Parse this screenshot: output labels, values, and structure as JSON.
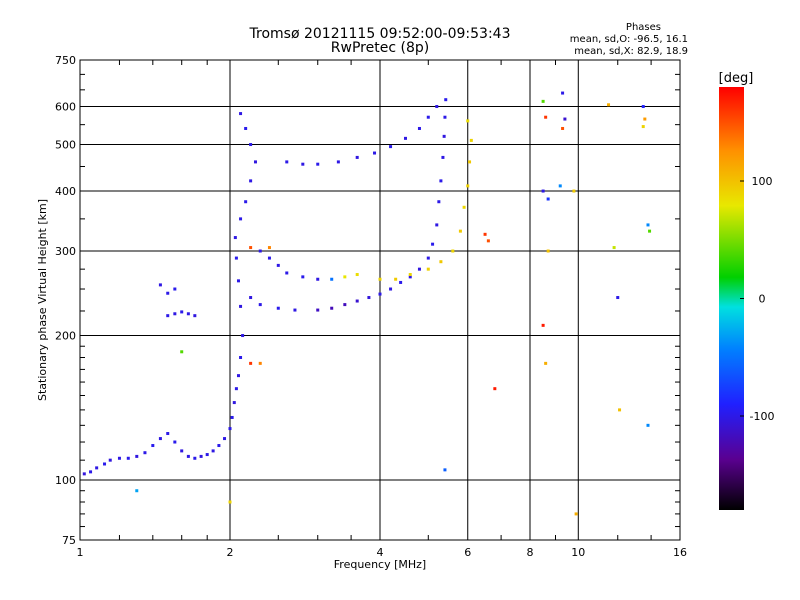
{
  "header": {
    "title_line1": "Tromsø 20121115 09:52:00-09:53:43",
    "title_line2": "RwPretec (8p)",
    "stats_title": "Phases",
    "stats_line1": "mean, sd,O: -96.5, 16.1",
    "stats_line2": "mean, sd,X:  82.9, 18.9"
  },
  "colorbar": {
    "label": "[deg]",
    "range": [
      -180,
      180
    ],
    "ticks": [
      {
        "value": 100,
        "label": "100"
      },
      {
        "value": 0,
        "label": "0"
      },
      {
        "value": -100,
        "label": "-100"
      }
    ]
  },
  "chart_data": {
    "type": "scatter",
    "xlabel": "Frequency [MHz]",
    "ylabel": "Stationary phase Virtual Height [km]",
    "xscale": "log",
    "yscale": "log",
    "xlim": [
      1,
      16
    ],
    "ylim": [
      75,
      750
    ],
    "grid": true,
    "xticks": [
      {
        "value": 1,
        "label": "1"
      },
      {
        "value": 2,
        "label": "2"
      },
      {
        "value": 4,
        "label": "4"
      },
      {
        "value": 6,
        "label": "6"
      },
      {
        "value": 8,
        "label": "8"
      },
      {
        "value": 10,
        "label": "10"
      },
      {
        "value": 16,
        "label": "16"
      }
    ],
    "yticks": [
      {
        "value": 75,
        "label": "75"
      },
      {
        "value": 100,
        "label": "100"
      },
      {
        "value": 200,
        "label": "200"
      },
      {
        "value": 300,
        "label": "300"
      },
      {
        "value": 400,
        "label": "400"
      },
      {
        "value": 500,
        "label": "500"
      },
      {
        "value": 600,
        "label": "600"
      },
      {
        "value": 750,
        "label": "750"
      }
    ],
    "series": [
      {
        "points": [
          [
            1.02,
            103,
            -105
          ],
          [
            1.05,
            104,
            -100
          ],
          [
            1.08,
            106,
            -102
          ],
          [
            1.12,
            108,
            -98
          ],
          [
            1.15,
            110,
            -104
          ],
          [
            1.2,
            111,
            -101
          ],
          [
            1.25,
            111,
            -99
          ],
          [
            1.3,
            112,
            -103
          ],
          [
            1.35,
            114,
            -100
          ],
          [
            1.4,
            118,
            -97
          ],
          [
            1.45,
            122,
            -102
          ],
          [
            1.5,
            125,
            -100
          ],
          [
            1.55,
            120,
            -98
          ],
          [
            1.6,
            115,
            -103
          ],
          [
            1.65,
            112,
            -101
          ],
          [
            1.7,
            111,
            -99
          ],
          [
            1.75,
            112,
            -104
          ],
          [
            1.8,
            113,
            -100
          ],
          [
            1.85,
            115,
            -102
          ],
          [
            1.9,
            118,
            -99
          ],
          [
            1.95,
            122,
            -101
          ],
          [
            2.0,
            128,
            -100
          ],
          [
            2.02,
            135,
            -98
          ],
          [
            2.04,
            145,
            -103
          ],
          [
            2.06,
            155,
            -100
          ],
          [
            2.08,
            165,
            -102
          ],
          [
            2.1,
            180,
            -99
          ],
          [
            2.12,
            200,
            -101
          ],
          [
            2.1,
            230,
            -103
          ],
          [
            2.08,
            260,
            -100
          ],
          [
            2.06,
            290,
            -98
          ],
          [
            2.05,
            320,
            -102
          ],
          [
            2.1,
            350,
            -100
          ],
          [
            2.15,
            380,
            -99
          ],
          [
            2.2,
            420,
            -101
          ],
          [
            2.25,
            460,
            -103
          ],
          [
            2.2,
            500,
            -100
          ],
          [
            2.15,
            540,
            -98
          ],
          [
            2.1,
            580,
            -102
          ],
          [
            2.3,
            300,
            -100
          ],
          [
            2.4,
            290,
            -99
          ],
          [
            2.5,
            280,
            -101
          ],
          [
            2.2,
            240,
            -103
          ],
          [
            2.3,
            232,
            -100
          ],
          [
            2.5,
            228,
            -98
          ],
          [
            2.7,
            226,
            -102
          ],
          [
            3.0,
            226,
            -115
          ],
          [
            3.2,
            228,
            -120
          ],
          [
            3.4,
            232,
            -118
          ],
          [
            3.6,
            236,
            -110
          ],
          [
            3.8,
            240,
            -105
          ],
          [
            4.0,
            244,
            -100
          ],
          [
            4.2,
            250,
            -102
          ],
          [
            4.4,
            258,
            -99
          ],
          [
            4.6,
            265,
            -101
          ],
          [
            4.8,
            275,
            -103
          ],
          [
            5.0,
            290,
            -100
          ],
          [
            5.1,
            310,
            -98
          ],
          [
            5.2,
            340,
            -102
          ],
          [
            5.25,
            380,
            -100
          ],
          [
            5.3,
            420,
            -99
          ],
          [
            5.35,
            470,
            -101
          ],
          [
            5.38,
            520,
            -103
          ],
          [
            5.4,
            570,
            -100
          ],
          [
            5.42,
            620,
            -98
          ],
          [
            2.6,
            460,
            -100
          ],
          [
            2.8,
            455,
            -102
          ],
          [
            3.0,
            455,
            -99
          ],
          [
            3.3,
            460,
            -101
          ],
          [
            3.6,
            470,
            -103
          ],
          [
            3.9,
            480,
            -100
          ],
          [
            4.2,
            495,
            -98
          ],
          [
            4.5,
            515,
            -102
          ],
          [
            4.8,
            540,
            -100
          ],
          [
            5.0,
            570,
            -99
          ],
          [
            5.2,
            600,
            -101
          ],
          [
            2.6,
            270,
            -100
          ],
          [
            2.8,
            265,
            -98
          ],
          [
            3.0,
            262,
            -102
          ],
          [
            3.2,
            262,
            -50
          ],
          [
            3.4,
            265,
            80
          ],
          [
            3.6,
            268,
            85
          ],
          [
            4.0,
            262,
            90
          ],
          [
            4.3,
            262,
            95
          ],
          [
            4.6,
            268,
            88
          ],
          [
            5.0,
            275,
            92
          ],
          [
            5.3,
            285,
            96
          ],
          [
            5.6,
            300,
            90
          ],
          [
            5.8,
            330,
            95
          ],
          [
            5.9,
            370,
            88
          ],
          [
            6.0,
            410,
            92
          ],
          [
            6.05,
            460,
            96
          ],
          [
            6.1,
            510,
            90
          ],
          [
            6.0,
            560,
            85
          ],
          [
            1.5,
            220,
            -100
          ],
          [
            1.55,
            222,
            -102
          ],
          [
            1.6,
            224,
            -99
          ],
          [
            1.65,
            222,
            -101
          ],
          [
            1.7,
            220,
            -103
          ],
          [
            1.5,
            245,
            -100
          ],
          [
            1.55,
            250,
            -98
          ],
          [
            1.45,
            255,
            -102
          ],
          [
            1.6,
            185,
            40
          ],
          [
            2.2,
            175,
            160
          ],
          [
            2.3,
            175,
            130
          ],
          [
            2.2,
            305,
            150
          ],
          [
            2.4,
            305,
            130
          ],
          [
            6.5,
            325,
            160
          ],
          [
            6.6,
            315,
            150
          ],
          [
            6.8,
            155,
            170
          ],
          [
            5.4,
            105,
            -60
          ],
          [
            1.3,
            95,
            -30
          ],
          [
            2.0,
            90,
            90
          ],
          [
            8.5,
            615,
            40
          ],
          [
            8.7,
            300,
            100
          ],
          [
            8.5,
            210,
            170
          ],
          [
            8.6,
            175,
            110
          ],
          [
            8.5,
            400,
            -100
          ],
          [
            8.7,
            385,
            -80
          ],
          [
            9.2,
            410,
            -40
          ],
          [
            9.3,
            540,
            150
          ],
          [
            9.4,
            565,
            -110
          ],
          [
            9.3,
            640,
            -100
          ],
          [
            9.8,
            400,
            95
          ],
          [
            9.9,
            85,
            110
          ],
          [
            11.5,
            605,
            110
          ],
          [
            11.8,
            305,
            70
          ],
          [
            12.0,
            240,
            -100
          ],
          [
            12.1,
            140,
            100
          ],
          [
            13.5,
            600,
            -90
          ],
          [
            13.6,
            565,
            120
          ],
          [
            13.8,
            340,
            -40
          ],
          [
            13.9,
            330,
            40
          ],
          [
            13.8,
            130,
            -40
          ],
          [
            13.5,
            545,
            90
          ],
          [
            8.6,
            570,
            160
          ]
        ]
      }
    ]
  }
}
